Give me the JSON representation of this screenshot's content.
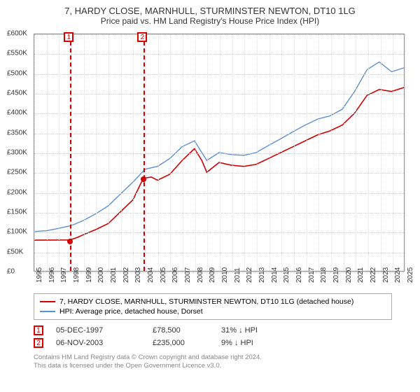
{
  "title": "7, HARDY CLOSE, MARNHULL, STURMINSTER NEWTON, DT10 1LG",
  "subtitle": "Price paid vs. HM Land Registry's House Price Index (HPI)",
  "chart": {
    "type": "line",
    "x_years": [
      1995,
      1996,
      1997,
      1998,
      1999,
      2000,
      2001,
      2002,
      2003,
      2004,
      2005,
      2006,
      2007,
      2008,
      2009,
      2010,
      2011,
      2012,
      2013,
      2014,
      2015,
      2016,
      2017,
      2018,
      2019,
      2020,
      2021,
      2022,
      2023,
      2024,
      2025
    ],
    "ylim": [
      0,
      600000
    ],
    "ytick_step": 50000,
    "ytick_labels": [
      "£0",
      "£50K",
      "£100K",
      "£150K",
      "£200K",
      "£250K",
      "£300K",
      "£350K",
      "£400K",
      "£450K",
      "£500K",
      "£550K",
      "£600K"
    ],
    "grid_color": "#cccccc",
    "background_color": "#ffffff",
    "series": {
      "price_paid": {
        "label": "7, HARDY CLOSE, MARNHULL, STURMINSTER NEWTON, DT10 1LG (detached house)",
        "color": "#d00000",
        "line_width": 1.6,
        "points": [
          [
            1995.0,
            78000
          ],
          [
            1997.9,
            78500
          ],
          [
            1998.5,
            85000
          ],
          [
            1999.0,
            92000
          ],
          [
            2000.0,
            105000
          ],
          [
            2001.0,
            120000
          ],
          [
            2002.0,
            150000
          ],
          [
            2003.0,
            180000
          ],
          [
            2003.85,
            235000
          ],
          [
            2004.5,
            238000
          ],
          [
            2005.0,
            230000
          ],
          [
            2006.0,
            245000
          ],
          [
            2007.0,
            280000
          ],
          [
            2008.0,
            310000
          ],
          [
            2008.6,
            280000
          ],
          [
            2009.0,
            250000
          ],
          [
            2010.0,
            275000
          ],
          [
            2011.0,
            268000
          ],
          [
            2012.0,
            265000
          ],
          [
            2013.0,
            270000
          ],
          [
            2014.0,
            285000
          ],
          [
            2015.0,
            300000
          ],
          [
            2016.0,
            315000
          ],
          [
            2017.0,
            330000
          ],
          [
            2018.0,
            345000
          ],
          [
            2019.0,
            355000
          ],
          [
            2020.0,
            370000
          ],
          [
            2021.0,
            400000
          ],
          [
            2022.0,
            445000
          ],
          [
            2023.0,
            460000
          ],
          [
            2024.0,
            455000
          ],
          [
            2025.0,
            465000
          ]
        ]
      },
      "hpi": {
        "label": "HPI: Average price, detached house, Dorset",
        "color": "#5b8fd6",
        "line_width": 1.4,
        "points": [
          [
            1995.0,
            100000
          ],
          [
            1996.0,
            102000
          ],
          [
            1997.0,
            108000
          ],
          [
            1998.0,
            115000
          ],
          [
            1999.0,
            128000
          ],
          [
            2000.0,
            145000
          ],
          [
            2001.0,
            165000
          ],
          [
            2002.0,
            195000
          ],
          [
            2003.0,
            225000
          ],
          [
            2004.0,
            258000
          ],
          [
            2005.0,
            265000
          ],
          [
            2006.0,
            285000
          ],
          [
            2007.0,
            315000
          ],
          [
            2008.0,
            330000
          ],
          [
            2008.6,
            300000
          ],
          [
            2009.0,
            280000
          ],
          [
            2010.0,
            300000
          ],
          [
            2011.0,
            295000
          ],
          [
            2012.0,
            293000
          ],
          [
            2013.0,
            300000
          ],
          [
            2014.0,
            318000
          ],
          [
            2015.0,
            335000
          ],
          [
            2016.0,
            353000
          ],
          [
            2017.0,
            370000
          ],
          [
            2018.0,
            385000
          ],
          [
            2019.0,
            393000
          ],
          [
            2020.0,
            410000
          ],
          [
            2021.0,
            455000
          ],
          [
            2022.0,
            510000
          ],
          [
            2023.0,
            530000
          ],
          [
            2024.0,
            505000
          ],
          [
            2025.0,
            515000
          ]
        ]
      }
    },
    "markers": [
      {
        "id": "1",
        "x_year": 1997.9,
        "y": 78500,
        "color": "#d00000"
      },
      {
        "id": "2",
        "x_year": 2003.85,
        "y": 235000,
        "color": "#d00000"
      }
    ]
  },
  "events": [
    {
      "id": "1",
      "date": "05-DEC-1997",
      "price": "£78,500",
      "hpi": "31% ↓ HPI"
    },
    {
      "id": "2",
      "date": "06-NOV-2003",
      "price": "£235,000",
      "hpi": "9% ↓ HPI"
    }
  ],
  "footer": {
    "line1": "Contains HM Land Registry data © Crown copyright and database right 2024.",
    "line2": "This data is licensed under the Open Government Licence v3.0."
  }
}
